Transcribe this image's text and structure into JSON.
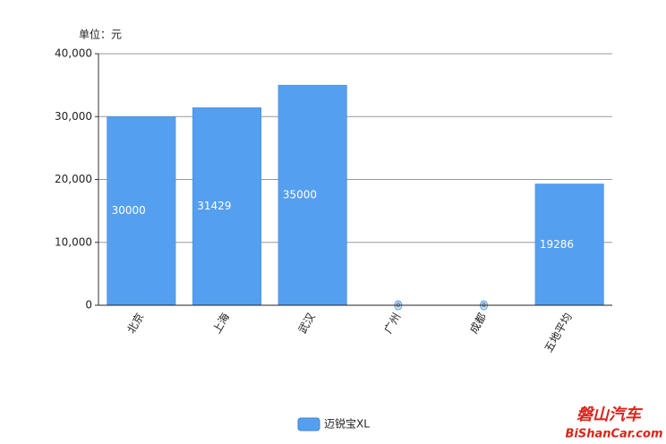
{
  "chart_data": {
    "type": "bar",
    "unit_label": "单位：元",
    "categories": [
      "北京",
      "上海",
      "武汉",
      "广州",
      "成都",
      "五地平均"
    ],
    "series": [
      {
        "name": "迈锐宝XL",
        "color": "#559ff0",
        "values": [
          30000,
          31429,
          35000,
          0,
          0,
          19286
        ]
      }
    ],
    "ylim": [
      0,
      40000
    ],
    "yticks": [
      0,
      {
        "value": 10000,
        "label": "10,000"
      },
      {
        "value": 20000,
        "label": "20,000"
      },
      {
        "value": 30000,
        "label": "30,000"
      },
      {
        "value": 40000,
        "label": "40,000"
      }
    ],
    "grid": true,
    "legend": "bottom"
  },
  "watermark": {
    "line1": "磐山汽车",
    "line2": "BiShanCar.com"
  }
}
